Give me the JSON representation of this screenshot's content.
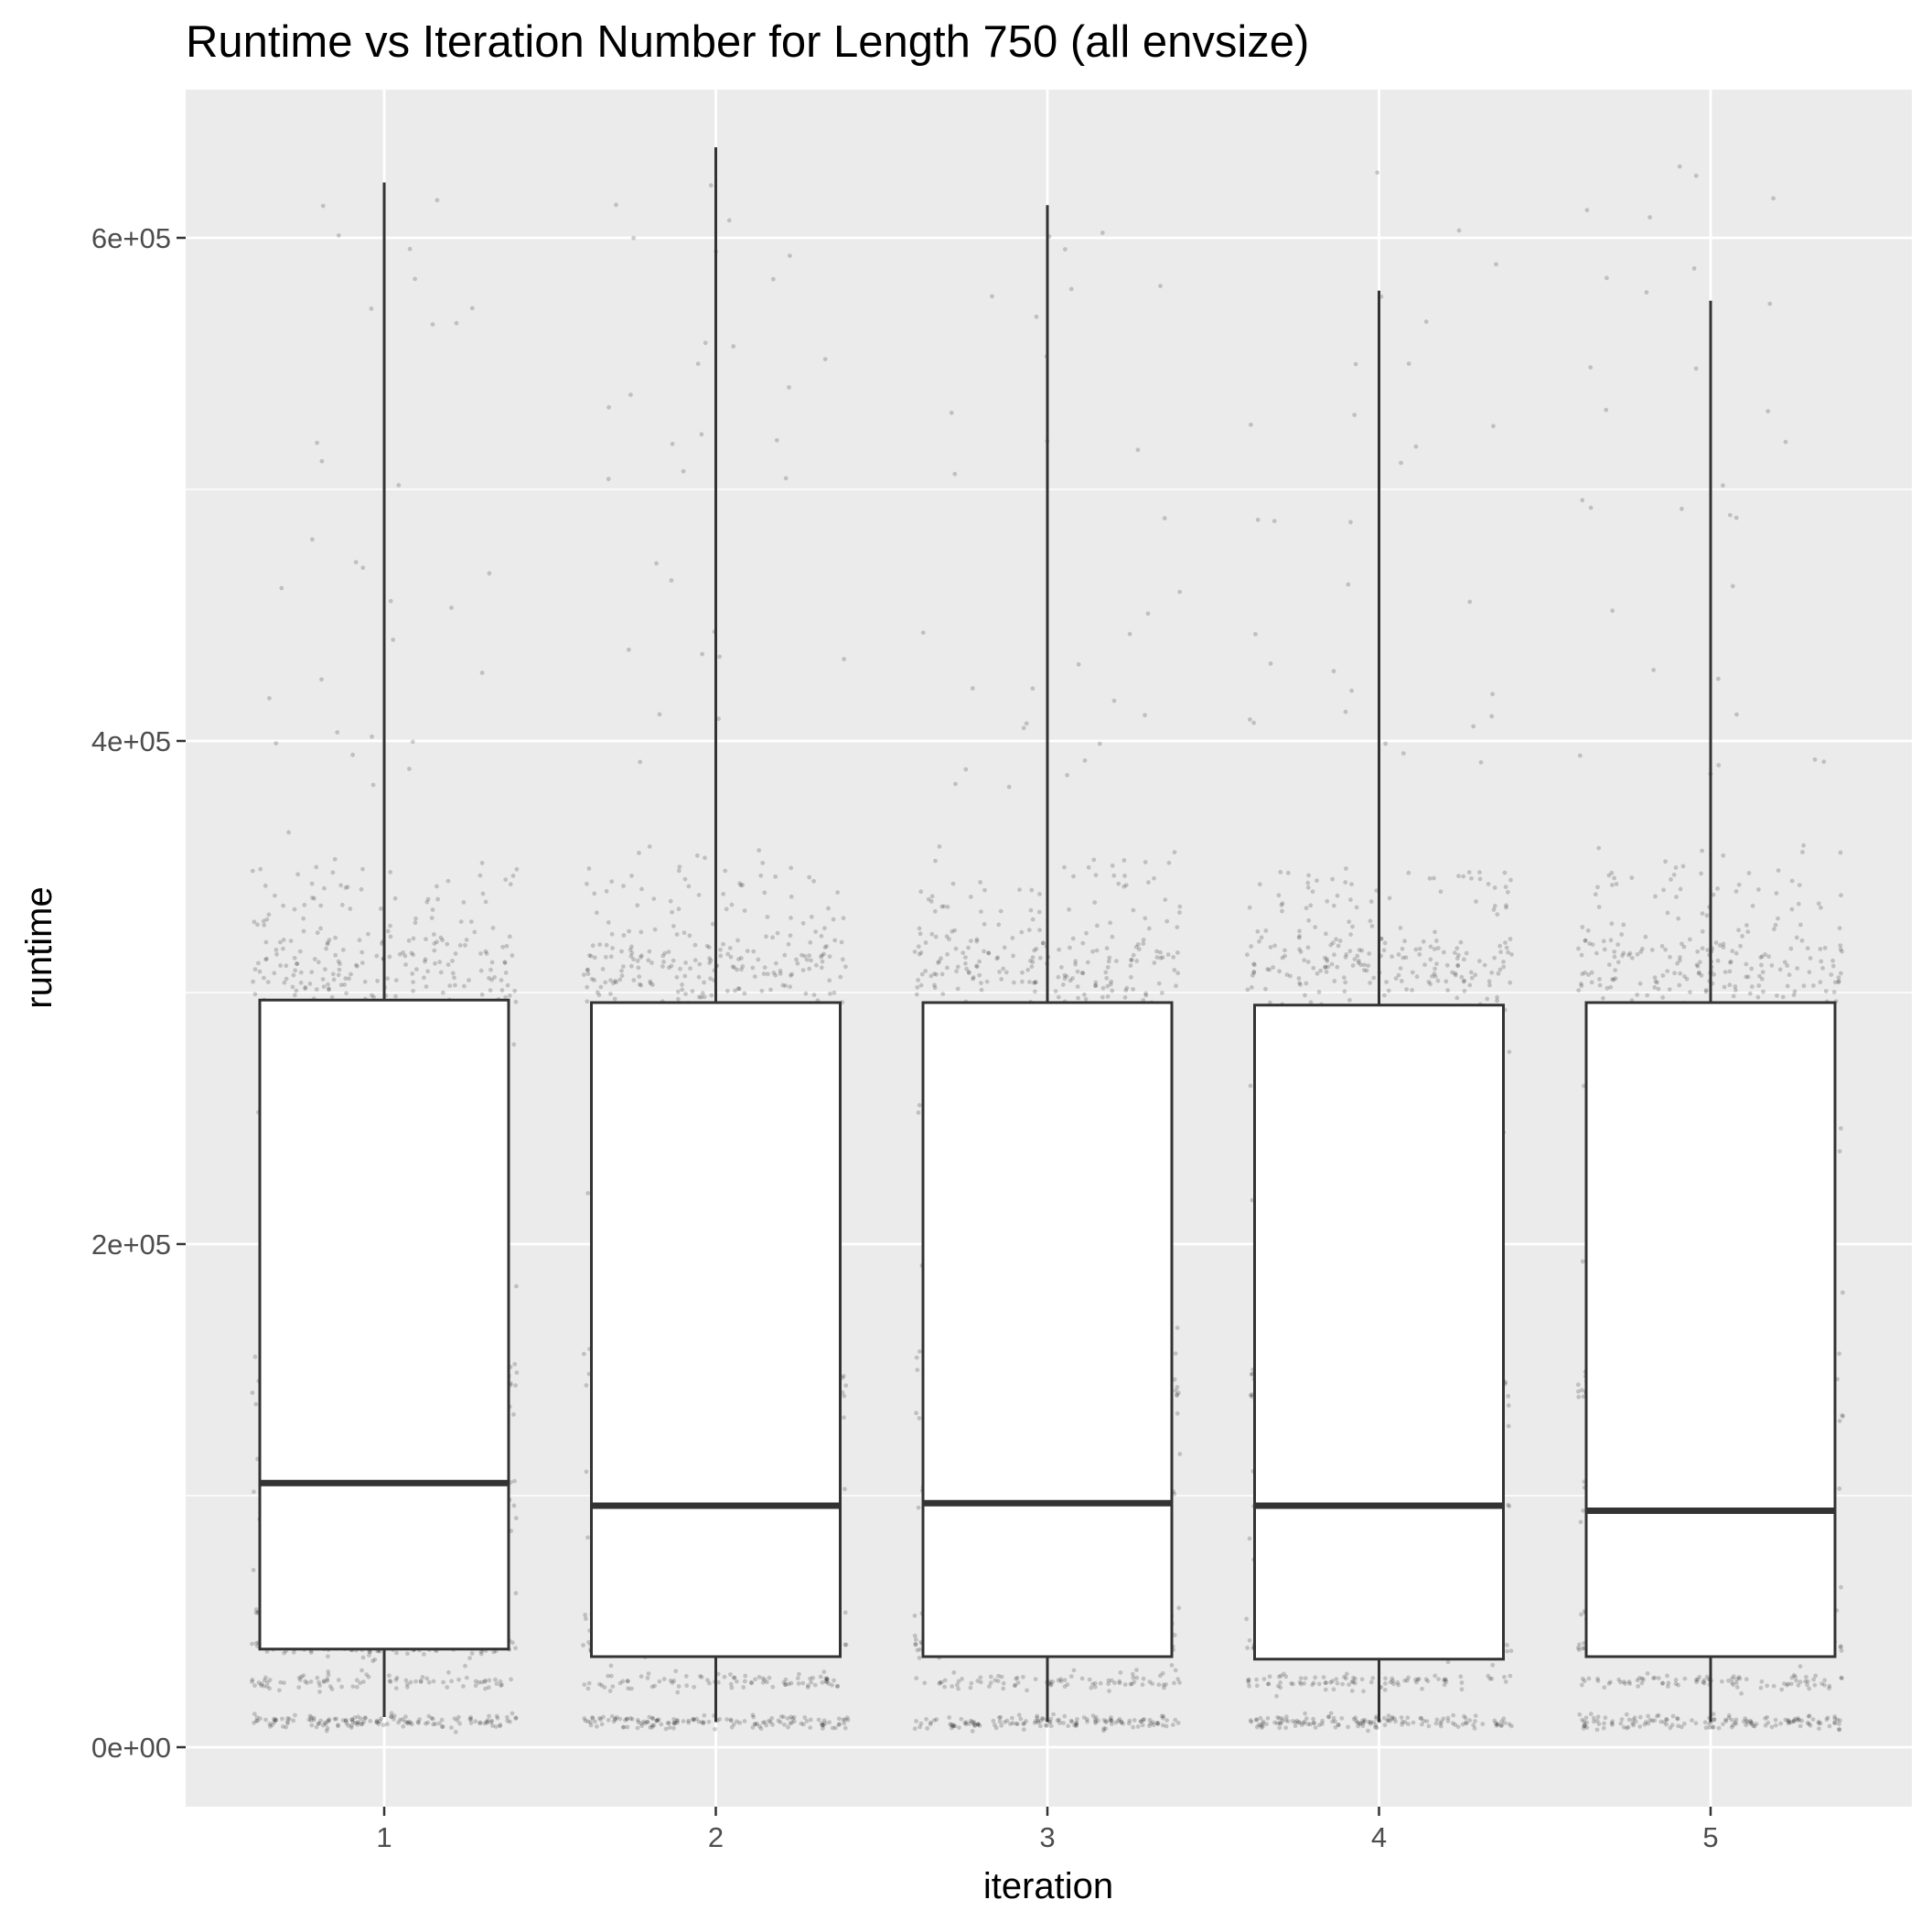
{
  "chart_data": {
    "type": "boxplot",
    "title": "Runtime vs Iteration Number for Length 750 (all envsize)",
    "xlabel": "iteration",
    "ylabel": "runtime",
    "categories": [
      "1",
      "2",
      "3",
      "4",
      "5"
    ],
    "y_ticks": [
      {
        "value": 0,
        "label": "0e+00"
      },
      {
        "value": 200000,
        "label": "2e+05"
      },
      {
        "value": 400000,
        "label": "4e+05"
      },
      {
        "value": 600000,
        "label": "6e+05"
      }
    ],
    "ylim": [
      -22000,
      672000
    ],
    "grid": true,
    "boxes": [
      {
        "category": "1",
        "whisker_low": 12000,
        "q1": 39000,
        "median": 105000,
        "q3": 297000,
        "whisker_high": 622000
      },
      {
        "category": "2",
        "whisker_low": 10000,
        "q1": 36000,
        "median": 96000,
        "q3": 296000,
        "whisker_high": 636000
      },
      {
        "category": "3",
        "whisker_low": 10000,
        "q1": 36000,
        "median": 97000,
        "q3": 296000,
        "whisker_high": 613000
      },
      {
        "category": "4",
        "whisker_low": 10000,
        "q1": 35000,
        "median": 96000,
        "q3": 295000,
        "whisker_high": 579000
      },
      {
        "category": "5",
        "whisker_low": 10000,
        "q1": 36000,
        "median": 94000,
        "q3": 296000,
        "whisker_high": 575000
      }
    ],
    "points": {
      "description_level": "jittered raw observations, approx 1000 per iteration",
      "per_category": 1000,
      "clusters": [
        {
          "runtime": 10000,
          "share": 0.14
        },
        {
          "runtime": 26000,
          "share": 0.08
        },
        {
          "runtime": 40000,
          "share": 0.14
        },
        {
          "runtime": 53000,
          "share": 0.05
        },
        {
          "runtime": 95000,
          "share": 0.08
        },
        {
          "runtime": 145000,
          "share": 0.16
        },
        {
          "runtime": 310000,
          "share": 0.17
        },
        {
          "runtime": 340000,
          "share": 0.05
        },
        {
          "runtime": 430000,
          "share": 0.03
        }
      ],
      "color": "#000000",
      "opacity": 0.18
    },
    "colors": {
      "panel": "#ebebeb",
      "grid": "#ffffff",
      "box_fill": "#ffffff",
      "box_stroke": "#333333"
    }
  }
}
